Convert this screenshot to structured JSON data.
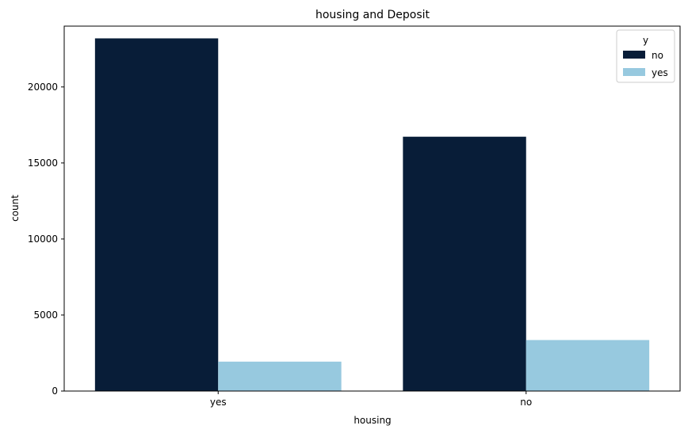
{
  "chart_data": {
    "type": "bar",
    "title": "housing and Deposit",
    "xlabel": "housing",
    "ylabel": "count",
    "categories": [
      "yes",
      "no"
    ],
    "series": [
      {
        "name": "no",
        "values": [
          23195,
          16727
        ],
        "color": "#081d38"
      },
      {
        "name": "yes",
        "values": [
          1935,
          3354
        ],
        "color": "#97c9df"
      }
    ],
    "ylim": [
      0,
      24000
    ],
    "yticks": [
      0,
      5000,
      10000,
      15000,
      20000
    ],
    "legend": {
      "title": "y",
      "position": "top-right"
    },
    "grid": false
  }
}
